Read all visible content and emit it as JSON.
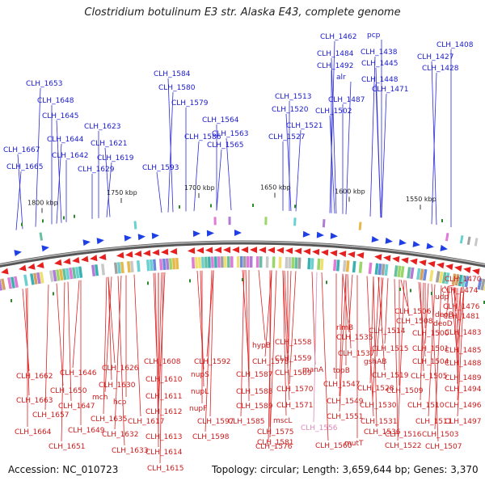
{
  "title": "Clostridium botulinum E3 str. Alaska E43, complete genome",
  "footer": {
    "accession": "Accession: NC_010723",
    "summary": "Topology: circular; Length: 3,659,644 bp; Genes: 3,370"
  },
  "colors": {
    "forward_label": "#1a1acc",
    "reverse_label": "#cc1a1a",
    "pink_label": "#dd88bb",
    "backbone": "#888888",
    "forward_arrow": "#1f3fe6",
    "reverse_arrow": "#e61f1f",
    "tick_green": "#2a8a2a"
  },
  "ticks": [
    "1800 kbp",
    "1750 kbp",
    "1700 kbp",
    "1650 kbp",
    "1600 kbp",
    "1550 kbp"
  ],
  "forward_genes": [
    "CLH_1653",
    "CLH_1648",
    "CLH_1645",
    "CLH_1644",
    "CLH_1642",
    "CLH_1667",
    "CLH_1665",
    "CLH_1623",
    "CLH_1621",
    "CLH_1619",
    "CLH_1629",
    "CLH_1584",
    "CLH_1580",
    "CLH_1579",
    "CLH_1593",
    "CLH_1586",
    "CLH_1564",
    "CLH_1563",
    "CLH_1565",
    "CLH_1513",
    "CLH_1520",
    "CLH_1521",
    "CLH_1527",
    "CLH_1502",
    "CLH_1462",
    "pcp",
    "CLH_1484",
    "CLH_1438",
    "CLH_1492",
    "CLH_1445",
    "alr",
    "CLH_1487",
    "CLH_1448",
    "CLH_1471",
    "CLH_1408",
    "CLH_1427",
    "CLH_1428"
  ],
  "reverse_genes": [
    "CLH_1662",
    "CLH_1663",
    "CLH_1664",
    "CLH_1657",
    "CLH_1646",
    "CLH_1650",
    "CLH_1647",
    "CLH_1649",
    "CLH_1651",
    "mch",
    "CLH_1626",
    "CLH_1630",
    "hcp",
    "CLH_1635",
    "CLH_1632",
    "CLH_1633",
    "CLH_1608",
    "CLH_1610",
    "CLH_1611",
    "CLH_1612",
    "CLH_1617",
    "CLH_1613",
    "CLH_1614",
    "CLH_1615",
    "CLH_1592",
    "nupS",
    "nupL",
    "nupF",
    "CLH_1597",
    "CLH_1598",
    "CLH_1587",
    "CLH_1588",
    "CLH_1589",
    "CLH_1585",
    "CLH_1578",
    "hypB",
    "CLH_1558",
    "CLH_1559",
    "CLH_1569",
    "CLH_1570",
    "CLH_1571",
    "mscL",
    "CLH_1575",
    "CLH_1576",
    "CLH_1581",
    "CLH_1560",
    "manA",
    "CLH_1547",
    "CLH_1549",
    "CLH_1551",
    "CLH_1535",
    "CLH_1537",
    "topB",
    "rlmB",
    "CLH_1530",
    "CLH_1531",
    "CLH_1536",
    "mutT",
    "CLH_1528",
    "CLH_1522",
    "CLH_1506",
    "CLH_1508",
    "CLH_1514",
    "CLH_1515",
    "gshAB",
    "CLH_1519",
    "CLH_1516",
    "CLH_1509",
    "CLH_1510",
    "CLH_1511",
    "CLH_1504",
    "CLH_1505",
    "CLH_1500",
    "CLH_1501",
    "CLH_1503",
    "CLH_1507",
    "udp",
    "deoB",
    "deoD",
    "CLH_1470",
    "CLH_1474",
    "CLH_1476",
    "CLH_1481",
    "CLH_1483",
    "CLH_1485",
    "CLH_1488",
    "CLH_1489",
    "CLH_1494",
    "CLH_1496",
    "CLH_1497"
  ],
  "pink_genes": [
    "CLH_1556"
  ]
}
